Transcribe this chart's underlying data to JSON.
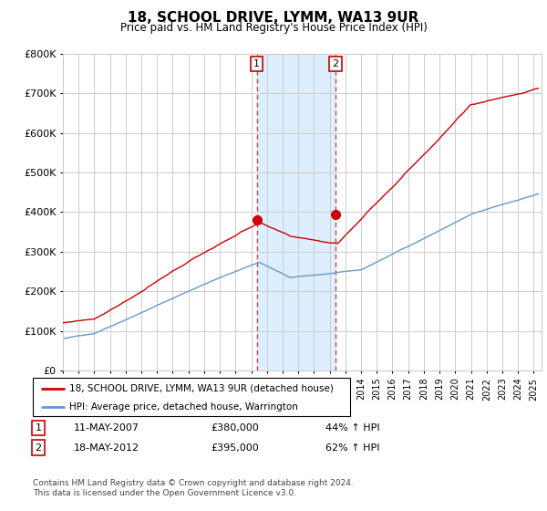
{
  "title": "18, SCHOOL DRIVE, LYMM, WA13 9UR",
  "subtitle": "Price paid vs. HM Land Registry's House Price Index (HPI)",
  "ylim": [
    0,
    800000
  ],
  "xlim_start": 1995.0,
  "xlim_end": 2025.5,
  "sale1_year": 2007.36,
  "sale1_price": 380000,
  "sale1_label": "1",
  "sale1_date": "11-MAY-2007",
  "sale2_year": 2012.38,
  "sale2_price": 395000,
  "sale2_label": "2",
  "sale2_date": "18-MAY-2012",
  "legend_line1": "18, SCHOOL DRIVE, LYMM, WA13 9UR (detached house)",
  "legend_line2": "HPI: Average price, detached house, Warrington",
  "footer": "Contains HM Land Registry data © Crown copyright and database right 2024.\nThis data is licensed under the Open Government Licence v3.0.",
  "red_color": "#cc0000",
  "blue_color": "#6699cc",
  "shade_color": "#ddeeff",
  "grid_color": "#cccccc",
  "background_color": "#ffffff",
  "table_row1": [
    "1",
    "11-MAY-2007",
    "£380,000",
    "44% ↑ HPI"
  ],
  "table_row2": [
    "2",
    "18-MAY-2012",
    "£395,000",
    "62% ↑ HPI"
  ]
}
